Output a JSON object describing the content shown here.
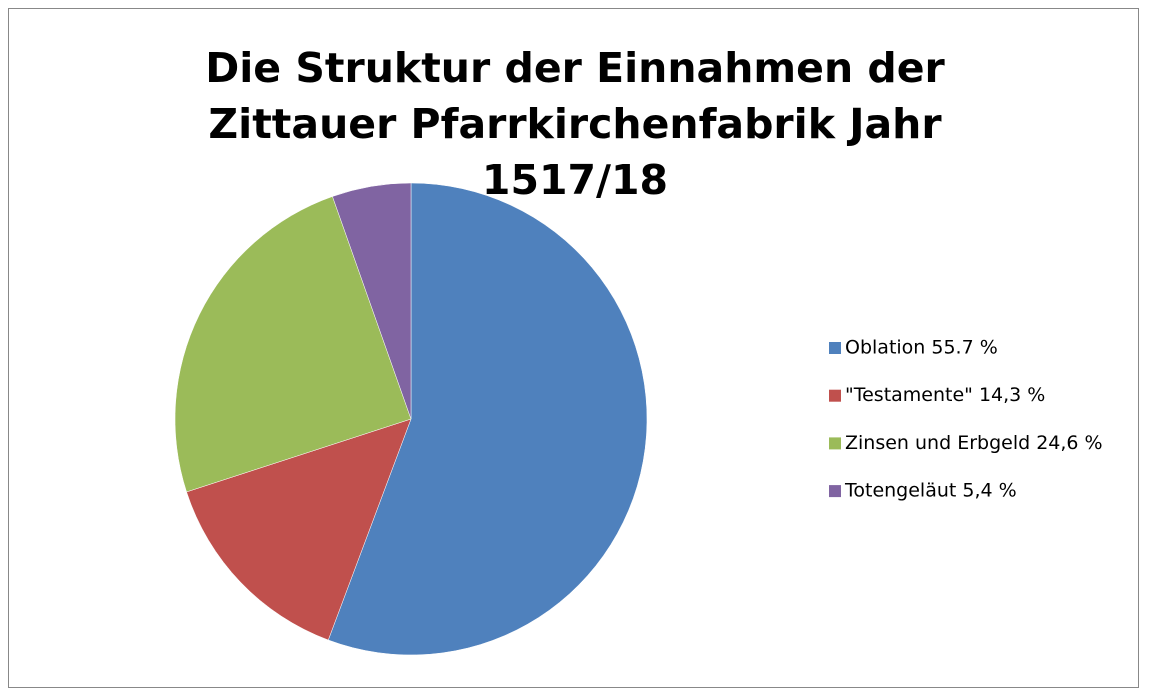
{
  "chart_data": {
    "type": "pie",
    "title": "Die Struktur der Einnahmen der Zittauer Pfarrkirchenfabrik Jahr 1517/18",
    "categories": [
      "Oblation 55.7 %",
      "\"Testamente\" 14,3 %",
      "Zinsen und Erbgeld 24,6 %",
      "Totengeläut 5,4 %"
    ],
    "values": [
      55.7,
      14.3,
      24.6,
      5.4
    ],
    "colors": [
      "#4f81bd",
      "#c0504d",
      "#9bbb59",
      "#8064a2"
    ],
    "legend": "right"
  }
}
